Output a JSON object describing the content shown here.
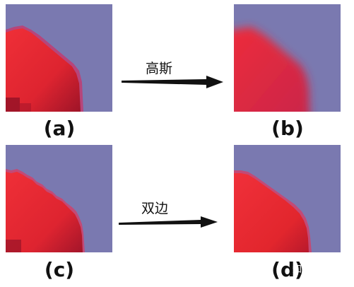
{
  "panels": [
    {
      "id": "a",
      "label": "(a)",
      "edge": "pixelated"
    },
    {
      "id": "b",
      "label": "(b)",
      "edge": "blurred"
    },
    {
      "id": "c",
      "label": "(c)",
      "edge": "jagged"
    },
    {
      "id": "d",
      "label": "(d)",
      "edge": "smooth"
    }
  ],
  "arrows": [
    {
      "from": "a",
      "to": "b",
      "label": "高斯"
    },
    {
      "from": "c",
      "to": "d",
      "label": "双边"
    }
  ],
  "watermark": "知乎 @Pjer",
  "colors": {
    "background_purple": "#7a79b0",
    "shape_red": "#e2262d",
    "shape_red_dark": "#a9152a",
    "edge_pink": "#c24a76",
    "arrow": "#111111"
  }
}
